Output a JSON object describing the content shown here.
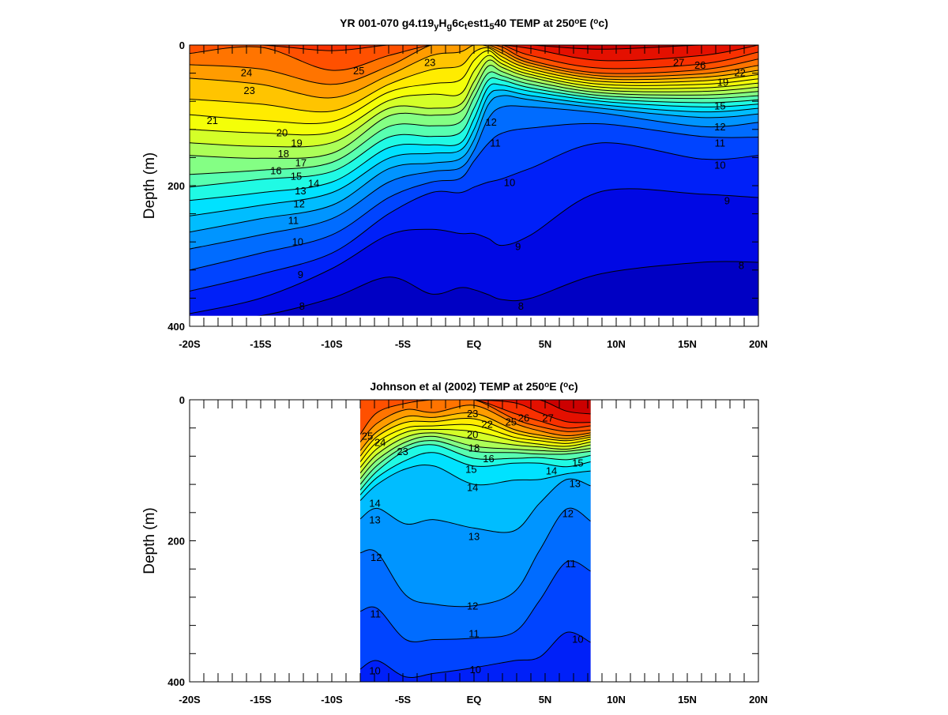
{
  "chart_data": [
    {
      "type": "contour",
      "title_segments": [
        {
          "text": "YR 001-070 g4.t19",
          "style": "normal"
        },
        {
          "text": "y",
          "style": "sub"
        },
        {
          "text": "H",
          "style": "normal"
        },
        {
          "text": "g",
          "style": "sub"
        },
        {
          "text": "6c",
          "style": "normal"
        },
        {
          "text": "t",
          "style": "sub"
        },
        {
          "text": "est1",
          "style": "normal"
        },
        {
          "text": "5",
          "style": "sub"
        },
        {
          "text": "40 TEMP at 250",
          "style": "normal"
        },
        {
          "text": "o",
          "style": "sup"
        },
        {
          "text": "E (",
          "style": "normal"
        },
        {
          "text": "o",
          "style": "sup"
        },
        {
          "text": "c)",
          "style": "normal"
        }
      ],
      "xlabel": "",
      "ylabel": "Depth (m)",
      "xlim": [
        -20,
        20
      ],
      "ylim": [
        400,
        0
      ],
      "xtick_values": [
        -20,
        -15,
        -10,
        -5,
        0,
        5,
        10,
        15,
        20
      ],
      "xtick_labels": [
        "-20S",
        "-15S",
        "-10S",
        "-5S",
        "EQ",
        "5N",
        "10N",
        "15N",
        "20N"
      ],
      "ytick_values": [
        0,
        200,
        400
      ],
      "ytick_labels": [
        "0",
        "200",
        "400"
      ],
      "data_extent": {
        "lat": [
          -20,
          20
        ],
        "depth": [
          0,
          385
        ]
      },
      "units": "degC",
      "lats": [
        -20,
        -15,
        -10,
        -6,
        -3,
        -1,
        0,
        1,
        2,
        4,
        9,
        16,
        20
      ],
      "surface_temp": [
        25.8,
        26.3,
        26.5,
        25.6,
        24.0,
        23.2,
        23.0,
        24.0,
        25.5,
        27.5,
        28.5,
        27.8,
        26.8
      ],
      "isotherm_depths": {
        "8": [
          395,
          385,
          360,
          330,
          354,
          345,
          348,
          355,
          362,
          360,
          325,
          309,
          309
        ],
        "9": [
          382,
          360,
          318,
          270,
          262,
          268,
          268,
          275,
          285,
          270,
          208,
          212,
          217
        ],
        "10": [
          350,
          326,
          296,
          240,
          210,
          210,
          202,
          195,
          190,
          175,
          139,
          162,
          157
        ],
        "11": [
          320,
          296,
          270,
          217,
          195,
          190,
          165,
          140,
          125,
          118,
          112,
          130,
          131
        ],
        "12": [
          290,
          270,
          247,
          195,
          180,
          175,
          150,
          105,
          88,
          88,
          97,
          116,
          110
        ],
        "13": [
          266,
          247,
          228,
          176,
          168,
          162,
          135,
          85,
          72,
          78,
          90,
          103,
          98
        ],
        "14": [
          243,
          228,
          210,
          161,
          154,
          150,
          120,
          72,
          64,
          72,
          85,
          95,
          90
        ],
        "15": [
          221,
          210,
          195,
          146,
          142,
          140,
          105,
          60,
          57,
          66,
          80,
          88,
          84
        ],
        "16": [
          202,
          191,
          180,
          131,
          130,
          125,
          90,
          50,
          50,
          61,
          76,
          82,
          78
        ],
        "17": [
          184,
          178,
          167,
          116,
          115,
          110,
          75,
          40,
          44,
          56,
          72,
          76,
          72
        ],
        "18": [
          157,
          161,
          154,
          101,
          100,
          95,
          64,
          30,
          38,
          51,
          68,
          71,
          66
        ],
        "19": [
          139,
          144,
          139,
          90,
          90,
          85,
          52,
          22,
          32,
          46,
          64,
          66,
          60
        ],
        "20": [
          120,
          125,
          124,
          79,
          70,
          70,
          37,
          15,
          27,
          42,
          60,
          61,
          54
        ],
        "21": [
          99,
          107,
          109,
          67,
          55,
          50,
          22,
          8,
          22,
          38,
          56,
          56,
          48
        ],
        "22": [
          77,
          84,
          94,
          56,
          35,
          30,
          10,
          4,
          17,
          34,
          52,
          51,
          42
        ],
        "23": [
          47,
          56,
          75,
          43,
          15,
          10,
          null,
          2,
          12,
          30,
          48,
          46,
          36
        ],
        "24": [
          28,
          34,
          56,
          30,
          null,
          null,
          null,
          null,
          8,
          26,
          44,
          41,
          29
        ],
        "25": [
          12,
          3,
          36,
          15,
          null,
          null,
          null,
          null,
          3,
          22,
          40,
          35,
          20
        ],
        "26": [
          null,
          null,
          8,
          null,
          null,
          null,
          null,
          null,
          null,
          15,
          33,
          27,
          10
        ],
        "27": [
          null,
          null,
          null,
          null,
          null,
          null,
          null,
          null,
          null,
          5,
          22,
          15,
          null
        ],
        "28": [
          null,
          null,
          null,
          null,
          null,
          null,
          null,
          null,
          null,
          null,
          6,
          null,
          null
        ]
      },
      "contour_labels": [
        {
          "text": "24",
          "lat": -16.0,
          "depth": 39
        },
        {
          "text": "23",
          "lat": -15.8,
          "depth": 64
        },
        {
          "text": "25",
          "lat": -8.1,
          "depth": 36
        },
        {
          "text": "21",
          "lat": -18.4,
          "depth": 107
        },
        {
          "text": "20",
          "lat": -13.5,
          "depth": 124
        },
        {
          "text": "19",
          "lat": -13.5,
          "depth": 139
        },
        {
          "text": "18",
          "lat": -13.4,
          "depth": 154
        },
        {
          "text": "17",
          "lat": -13.2,
          "depth": 167
        },
        {
          "text": "16",
          "lat": -12.9,
          "depth": 178
        },
        {
          "text": "15",
          "lat": -12.5,
          "depth": 186
        },
        {
          "text": "14",
          "lat": -12.3,
          "depth": 196
        },
        {
          "text": "13",
          "lat": -12.2,
          "depth": 207
        },
        {
          "text": "12",
          "lat": -12.3,
          "depth": 225
        },
        {
          "text": "11",
          "lat": -12.7,
          "depth": 249
        },
        {
          "text": "10",
          "lat": -12.4,
          "depth": 279
        },
        {
          "text": "9",
          "lat": -12.2,
          "depth": 326
        },
        {
          "text": "8",
          "lat": -12.1,
          "depth": 371
        },
        {
          "text": "23",
          "lat": -3.1,
          "depth": 24
        },
        {
          "text": "12",
          "lat": 1.2,
          "depth": 109
        },
        {
          "text": "11",
          "lat": 1.5,
          "depth": 139
        },
        {
          "text": "10",
          "lat": 2.5,
          "depth": 195
        },
        {
          "text": "9",
          "lat": 3.1,
          "depth": 286
        },
        {
          "text": "8",
          "lat": 3.3,
          "depth": 371
        },
        {
          "text": "27",
          "lat": 14.4,
          "depth": 24
        },
        {
          "text": "26",
          "lat": 15.9,
          "depth": 28
        },
        {
          "text": "22",
          "lat": 18.7,
          "depth": 39
        },
        {
          "text": "19",
          "lat": 17.5,
          "depth": 52
        },
        {
          "text": "15",
          "lat": 17.3,
          "depth": 86
        },
        {
          "text": "12",
          "lat": 17.3,
          "depth": 116
        },
        {
          "text": "11",
          "lat": 17.3,
          "depth": 139
        },
        {
          "text": "10",
          "lat": 17.3,
          "depth": 170
        },
        {
          "text": "9",
          "lat": 17.8,
          "depth": 221
        },
        {
          "text": "8",
          "lat": 18.8,
          "depth": 313
        }
      ]
    },
    {
      "type": "contour",
      "title_segments": [
        {
          "text": "Johnson et al (2002) TEMP at 250",
          "style": "normal"
        },
        {
          "text": "o",
          "style": "sup"
        },
        {
          "text": "E (",
          "style": "normal"
        },
        {
          "text": "o",
          "style": "sup"
        },
        {
          "text": "c)",
          "style": "normal"
        }
      ],
      "xlabel": "",
      "ylabel": "Depth (m)",
      "xlim": [
        -20,
        20
      ],
      "ylim": [
        400,
        0
      ],
      "xtick_values": [
        -20,
        -15,
        -10,
        -5,
        0,
        5,
        10,
        15,
        20
      ],
      "xtick_labels": [
        "-20S",
        "-15S",
        "-10S",
        "-5S",
        "EQ",
        "5N",
        "10N",
        "15N",
        "20N"
      ],
      "ytick_values": [
        0,
        200,
        400
      ],
      "ytick_labels": [
        "0",
        "200",
        "400"
      ],
      "data_extent": {
        "lat": [
          -8,
          8.2
        ],
        "depth": [
          0,
          400
        ]
      },
      "units": "degC",
      "lats": [
        -8,
        -6.8,
        -4.8,
        -2.8,
        0,
        2.8,
        4.6,
        6.5,
        8.2
      ],
      "surface_temp": [
        26.0,
        25.5,
        25.2,
        24.5,
        24.5,
        27.5,
        28.0,
        28.5,
        28.5
      ],
      "isotherm_depths": {
        "9": [
          420,
          420,
          420,
          420,
          420,
          420,
          420,
          420,
          420
        ],
        "10": [
          382,
          370,
          393,
          388,
          380,
          370,
          365,
          330,
          344
        ],
        "11": [
          300,
          296,
          340,
          340,
          338,
          330,
          285,
          230,
          243
        ],
        "12": [
          217,
          217,
          277,
          290,
          292,
          273,
          214,
          155,
          172
        ],
        "13": [
          169,
          154,
          176,
          170,
          182,
          186,
          147,
          113,
          122
        ],
        "14": [
          143,
          120,
          98,
          94,
          120,
          114,
          113,
          105,
          101
        ],
        "15": [
          135,
          110,
          86,
          75,
          94,
          90,
          90,
          95,
          88
        ],
        "16": [
          128,
          101,
          72,
          64,
          83,
          83,
          82,
          85,
          79
        ],
        "17": [
          120,
          93,
          66,
          58,
          73,
          75,
          77,
          77,
          73
        ],
        "18": [
          112,
          85,
          60,
          52,
          66,
          70,
          72,
          73,
          69
        ],
        "19": [
          104,
          77,
          53,
          47,
          56,
          64,
          67,
          70,
          64
        ],
        "20": [
          96,
          69,
          46,
          42,
          45,
          58,
          63,
          66,
          60
        ],
        "21": [
          88,
          60,
          40,
          37,
          36,
          53,
          58,
          62,
          56
        ],
        "22": [
          80,
          52,
          32,
          31,
          27,
          47,
          54,
          58,
          53
        ],
        "23": [
          72,
          45,
          24,
          25,
          19,
          42,
          50,
          55,
          50
        ],
        "24": [
          60,
          33,
          14,
          18,
          8,
          33,
          44,
          51,
          47
        ],
        "25": [
          49,
          18,
          5,
          null,
          null,
          27,
          38,
          45,
          43
        ],
        "26": [
          null,
          null,
          null,
          null,
          null,
          19,
          30,
          40,
          37
        ],
        "27": [
          null,
          null,
          null,
          null,
          null,
          4,
          18,
          31,
          32
        ],
        "28": [
          null,
          null,
          null,
          null,
          null,
          null,
          null,
          16,
          20
        ]
      },
      "contour_labels": [
        {
          "text": "25",
          "lat": -7.5,
          "depth": 51
        },
        {
          "text": "24",
          "lat": -6.6,
          "depth": 60
        },
        {
          "text": "23",
          "lat": -8.1,
          "depth": 73
        },
        {
          "text": "14",
          "lat": -8.0,
          "depth": 146
        },
        {
          "text": "13",
          "lat": -8.0,
          "depth": 170
        },
        {
          "text": "12",
          "lat": -7.9,
          "depth": 223
        },
        {
          "text": "11",
          "lat": -7.9,
          "depth": 303
        },
        {
          "text": "10",
          "lat": -8.0,
          "depth": 384
        },
        {
          "text": "23",
          "lat": -0.1,
          "depth": 19
        },
        {
          "text": "22",
          "lat": -0.1,
          "depth": 34
        },
        {
          "text": "20",
          "lat": -0.1,
          "depth": 49
        },
        {
          "text": "18",
          "lat": 0.0,
          "depth": 68
        },
        {
          "text": "16",
          "lat": 0.0,
          "depth": 83
        },
        {
          "text": "15",
          "lat": -0.2,
          "depth": 98
        },
        {
          "text": "14",
          "lat": -0.1,
          "depth": 124
        },
        {
          "text": "13",
          "lat": 0.0,
          "depth": 193
        },
        {
          "text": "12",
          "lat": -0.1,
          "depth": 292
        },
        {
          "text": "11",
          "lat": 0.0,
          "depth": 331
        },
        {
          "text": "10",
          "lat": 0.1,
          "depth": 382
        },
        {
          "text": "25",
          "lat": 2.6,
          "depth": 31
        },
        {
          "text": "26",
          "lat": 3.5,
          "depth": 25
        },
        {
          "text": "27",
          "lat": 5.2,
          "depth": 25
        },
        {
          "text": "15",
          "lat": 7.3,
          "depth": 89
        },
        {
          "text": "14",
          "lat": 7.5,
          "depth": 100
        },
        {
          "text": "13",
          "lat": 7.1,
          "depth": 118
        },
        {
          "text": "12",
          "lat": 6.6,
          "depth": 161
        },
        {
          "text": "11",
          "lat": 6.8,
          "depth": 232
        },
        {
          "text": "10",
          "lat": 7.3,
          "depth": 339
        }
      ]
    }
  ]
}
